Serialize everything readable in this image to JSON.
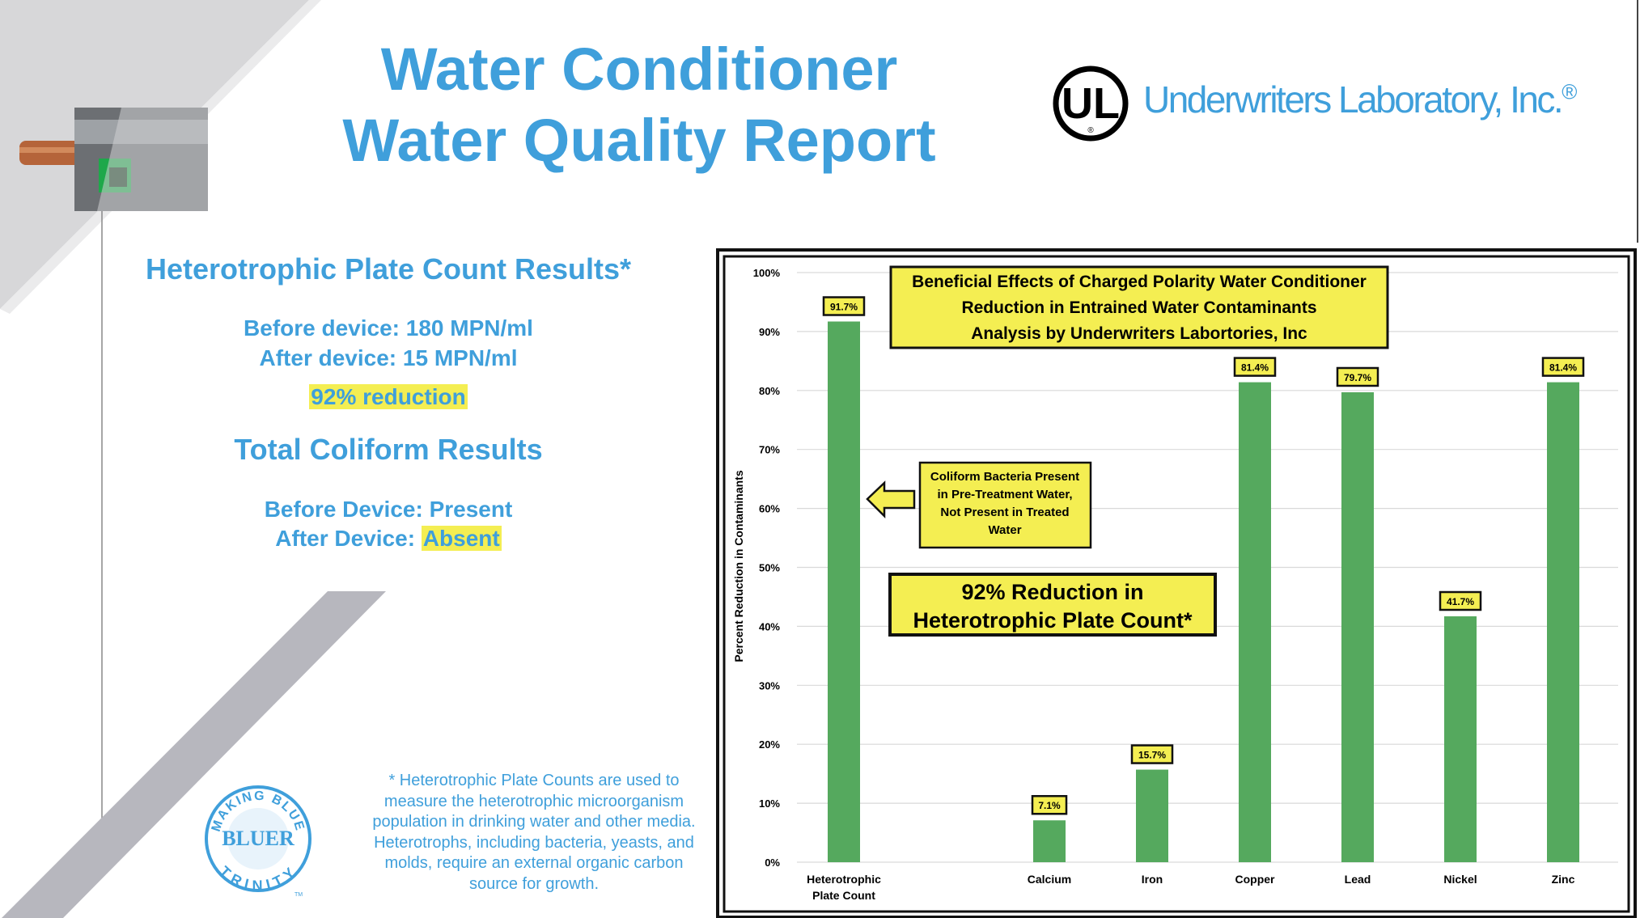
{
  "title": {
    "line1": "Water Conditioner",
    "line2": "Water Quality Report"
  },
  "ul": {
    "logo_text": "UL",
    "name": "Underwriters Laboratory, Inc.",
    "reg_mark": "®"
  },
  "hpc": {
    "heading": "Heterotrophic Plate Count Results*",
    "before": "Before device: 180 MPN/ml",
    "after": "After device: 15 MPN/ml",
    "reduction": "92% reduction"
  },
  "coliform": {
    "heading": "Total Coliform Results",
    "before": "Before Device: Present",
    "after_label": "After Device: ",
    "after_value": "Absent"
  },
  "footnote": {
    "lines": [
      "* Heterotrophic Plate Counts are used to",
      "measure the heterotrophic microorganism",
      "population in drinking water and other media.",
      "Heterotrophs, including bacteria, yeasts, and",
      "molds, require an external organic carbon",
      "source for growth."
    ]
  },
  "brand": {
    "top": "MAKING BLUE",
    "middle": "BLUER",
    "bottom": "TRINITY",
    "tm": "TM"
  },
  "colors": {
    "accent": "#3f9fdb",
    "bar": "#55a95e",
    "highlight": "#f4ee52",
    "device_label": "#1ea84a"
  },
  "chart_data": {
    "type": "bar",
    "title": [
      "Beneficial Effects of Charged Polarity Water Conditioner",
      "Reduction in Entrained Water Contaminants",
      "Analysis by Underwriters Labortories, Inc"
    ],
    "categories": [
      {
        "name": "Heterotrophic Plate Count",
        "lines": [
          "Heterotrophic",
          "Plate Count"
        ],
        "slot": 0
      },
      {
        "name": "Calcium",
        "lines": [
          "Calcium"
        ],
        "slot": 2
      },
      {
        "name": "Iron",
        "lines": [
          "Iron"
        ],
        "slot": 3
      },
      {
        "name": "Copper",
        "lines": [
          "Copper"
        ],
        "slot": 4
      },
      {
        "name": "Lead",
        "lines": [
          "Lead"
        ],
        "slot": 5
      },
      {
        "name": "Nickel",
        "lines": [
          "Nickel"
        ],
        "slot": 6
      },
      {
        "name": "Zinc",
        "lines": [
          "Zinc"
        ],
        "slot": 7
      }
    ],
    "values": [
      91.7,
      7.1,
      15.7,
      81.4,
      79.7,
      41.7,
      81.4
    ],
    "value_labels": [
      "91.7%",
      "7.1%",
      "15.7%",
      "81.4%",
      "79.7%",
      "41.7%",
      "81.4%"
    ],
    "ylabel": "Percent Reduction in Contaminants",
    "ylim": [
      0,
      100
    ],
    "yticks": [
      0,
      10,
      20,
      30,
      40,
      50,
      60,
      70,
      80,
      90,
      100
    ],
    "ytick_labels": [
      "0%",
      "10%",
      "20%",
      "30%",
      "40%",
      "50%",
      "60%",
      "70%",
      "80%",
      "90%",
      "100%"
    ],
    "grid": true,
    "annotations": {
      "coliform": [
        "Coliform Bacteria Present",
        "in Pre-Treatment Water,",
        "Not Present in Treated",
        "Water"
      ],
      "reduction": [
        "92% Reduction in",
        "Heterotrophic Plate Count*"
      ]
    }
  }
}
